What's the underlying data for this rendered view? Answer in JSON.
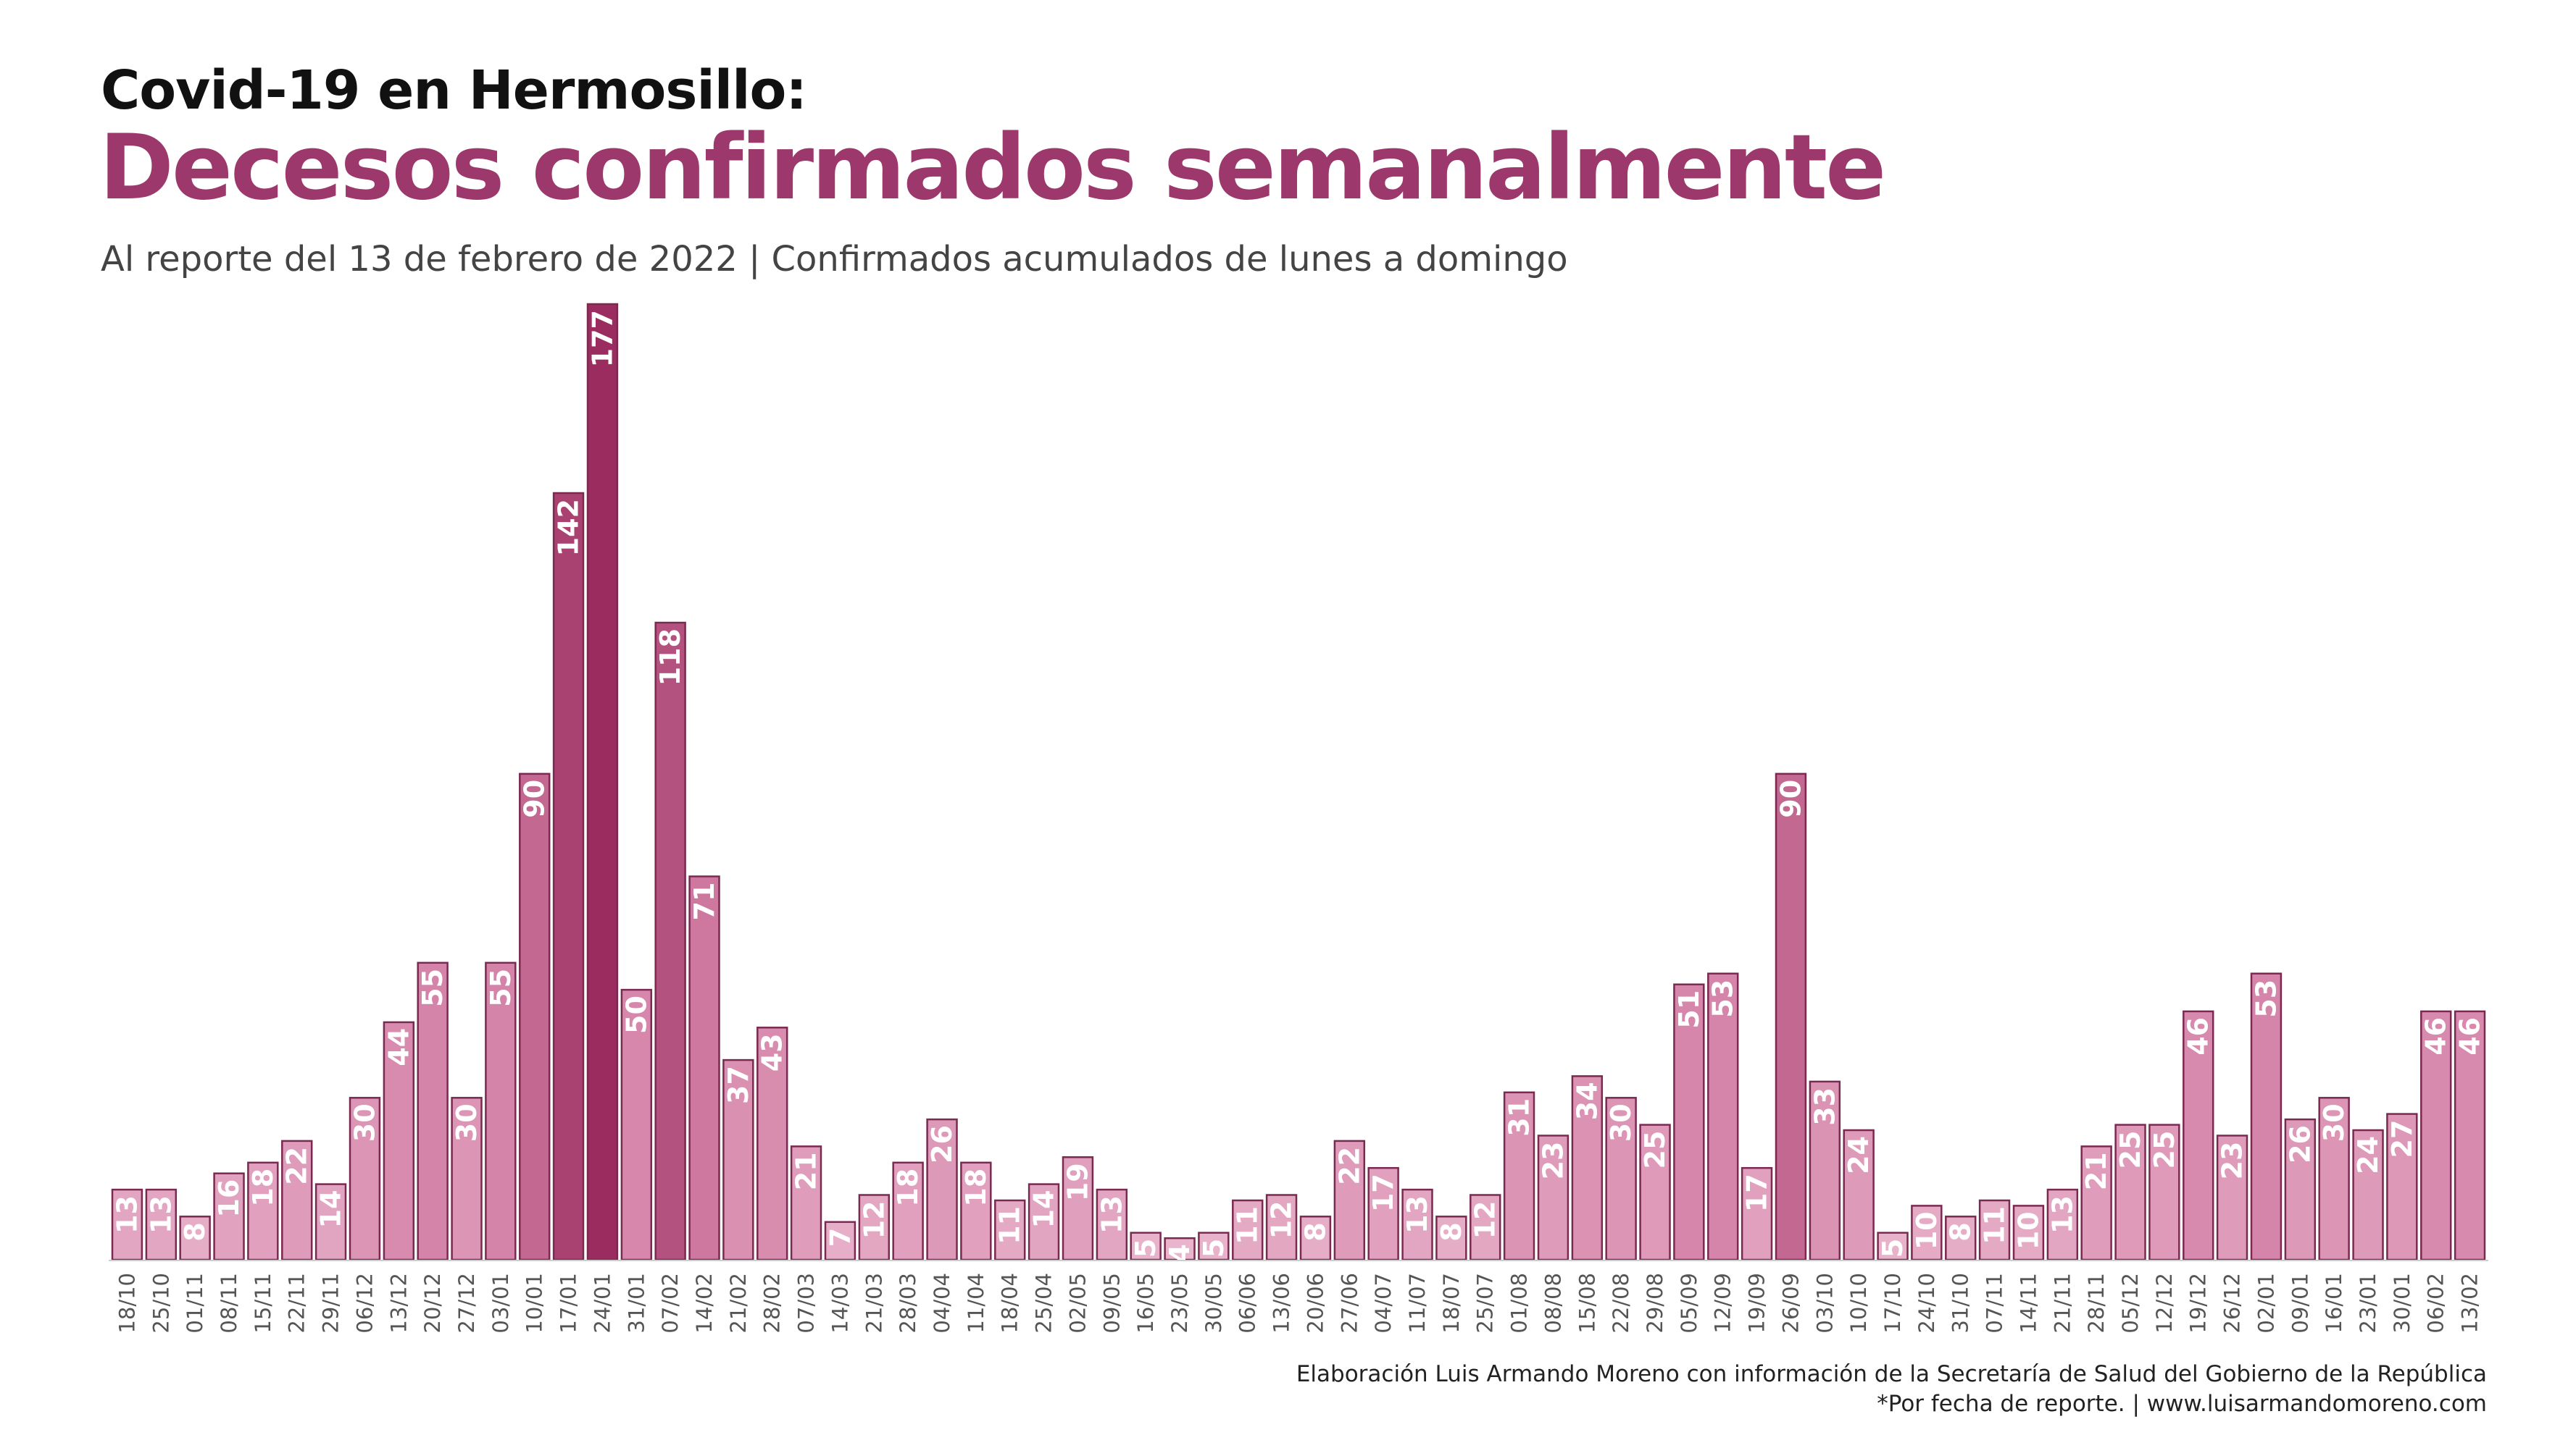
{
  "header": {
    "kicker": "Covid-19 en Hermosillo:",
    "title": "Decesos confirmados semanalmente",
    "subtitle": "Al reporte del 13 de febrero de 2022 | Confirmados acumulados de lunes a domingo"
  },
  "footer": {
    "credit": "Elaboración Luis Armando Moreno con información de la Secretaría de Salud del Gobierno de la República",
    "note": "*Por fecha de reporte. | www.luisarmandomoreno.com"
  },
  "chart_data": {
    "type": "bar",
    "title": "Decesos confirmados semanalmente",
    "xlabel": "",
    "ylabel": "",
    "ylim": [
      0,
      177
    ],
    "grid": false,
    "legend": "none",
    "data_labels": "inside-top-vertical",
    "color_scale": {
      "low": "#f0c6d9",
      "mid": "#d37fa5",
      "high": "#9a2c5f"
    },
    "border_color": "#7a2a50",
    "categories": [
      "18/10",
      "25/10",
      "01/11",
      "08/11",
      "15/11",
      "22/11",
      "29/11",
      "06/12",
      "13/12",
      "20/12",
      "27/12",
      "03/01",
      "10/01",
      "17/01",
      "24/01",
      "31/01",
      "07/02",
      "14/02",
      "21/02",
      "28/02",
      "07/03",
      "14/03",
      "21/03",
      "28/03",
      "04/04",
      "11/04",
      "18/04",
      "25/04",
      "02/05",
      "09/05",
      "16/05",
      "23/05",
      "30/05",
      "06/06",
      "13/06",
      "20/06",
      "27/06",
      "04/07",
      "11/07",
      "18/07",
      "25/07",
      "01/08",
      "08/08",
      "15/08",
      "22/08",
      "29/08",
      "05/09",
      "12/09",
      "19/09",
      "26/09",
      "03/10",
      "10/10",
      "17/10",
      "24/10",
      "31/10",
      "07/11",
      "14/11",
      "21/11",
      "28/11",
      "05/12",
      "12/12",
      "19/12",
      "26/12",
      "02/01",
      "09/01",
      "16/01",
      "23/01",
      "30/01",
      "06/02",
      "13/02"
    ],
    "values": [
      13,
      13,
      8,
      16,
      18,
      22,
      14,
      30,
      44,
      55,
      30,
      55,
      90,
      142,
      177,
      50,
      118,
      71,
      37,
      43,
      21,
      7,
      12,
      18,
      26,
      18,
      11,
      14,
      19,
      13,
      5,
      4,
      5,
      11,
      12,
      8,
      22,
      17,
      13,
      8,
      12,
      31,
      23,
      34,
      30,
      25,
      51,
      53,
      17,
      90,
      33,
      24,
      5,
      10,
      8,
      11,
      10,
      13,
      21,
      25,
      25,
      46,
      23,
      53,
      26,
      30,
      24,
      27,
      46,
      46
    ]
  }
}
